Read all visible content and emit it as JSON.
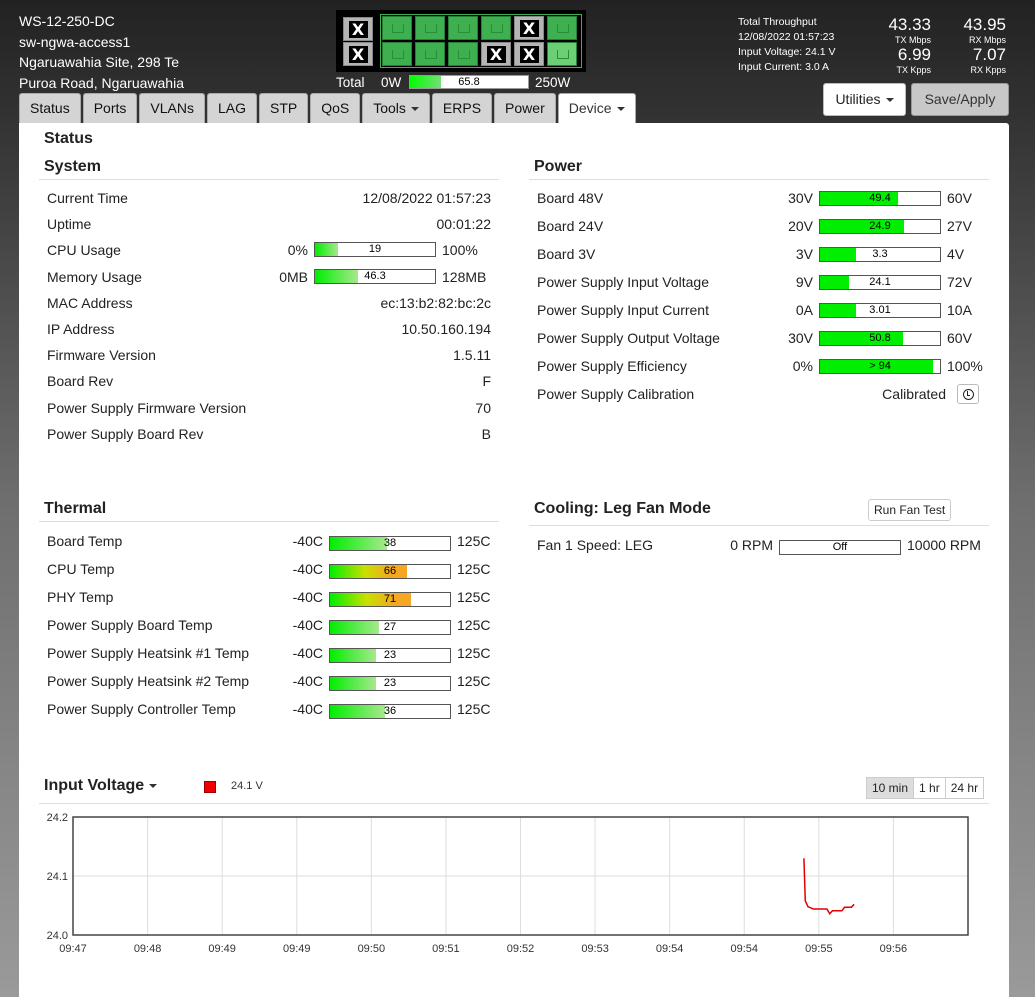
{
  "header": {
    "device_name": "WS-12-250-DC",
    "hostname": "sw-ngwa-access1",
    "location_line1": "Ngaruawahia Site, 298 Te",
    "location_line2": "Puroa Road, Ngaruawahia",
    "total_label": "Total",
    "total_min": "0W",
    "total_value": "65.8",
    "total_fraction": 0.263,
    "total_max": "250W",
    "throughput_title": "Total Throughput",
    "timestamp": "12/08/2022 01:57:23",
    "input_voltage": "Input Voltage: 24.1 V",
    "input_current": "Input Current: 3.0 A",
    "tx_mbps": "43.33",
    "tx_mbps_label": "TX Mbps",
    "rx_mbps": "43.95",
    "rx_mbps_label": "RX Mbps",
    "tx_kpps": "6.99",
    "tx_kpps_label": "TX Kpps",
    "rx_kpps": "7.07",
    "rx_kpps_label": "RX Kpps"
  },
  "ports": {
    "sfp": [
      "down",
      "down"
    ],
    "top": [
      "up",
      "up",
      "up",
      "up",
      "down",
      "up"
    ],
    "bottom": [
      "up",
      "up",
      "up",
      "down",
      "down",
      "up-light"
    ],
    "down_glyph": "X"
  },
  "tabs": [
    {
      "label": "Status"
    },
    {
      "label": "Ports"
    },
    {
      "label": "VLANs"
    },
    {
      "label": "LAG"
    },
    {
      "label": "STP"
    },
    {
      "label": "QoS"
    },
    {
      "label": "Tools",
      "dropdown": true
    },
    {
      "label": "ERPS"
    },
    {
      "label": "Power"
    },
    {
      "label": "Device",
      "dropdown": true,
      "active": true
    }
  ],
  "buttons": {
    "utilities": "Utilities",
    "save_apply": "Save/Apply"
  },
  "page_title": "Status",
  "system": {
    "title": "System",
    "rows": [
      {
        "label": "Current Time",
        "value": "12/08/2022 01:57:23"
      },
      {
        "label": "Uptime",
        "value": "00:01:22"
      },
      {
        "label": "CPU Usage",
        "bar": {
          "min": "0%",
          "max": "100%",
          "text": "19",
          "fraction": 0.19
        }
      },
      {
        "label": "Memory Usage",
        "bar": {
          "min": "0MB",
          "max": "128MB",
          "text": "46.3",
          "fraction": 0.36
        }
      },
      {
        "label": "MAC Address",
        "value": "ec:13:b2:82:bc:2c"
      },
      {
        "label": "IP Address",
        "value": "10.50.160.194"
      },
      {
        "label": "Firmware Version",
        "value": "1.5.11"
      },
      {
        "label": "Board Rev",
        "value": "F"
      },
      {
        "label": "Power Supply Firmware Version",
        "value": "70"
      },
      {
        "label": "Power Supply Board Rev",
        "value": "B"
      }
    ]
  },
  "power": {
    "title": "Power",
    "rows": [
      {
        "label": "Board 48V",
        "bar": {
          "min": "30V",
          "max": "60V",
          "text": "49.4",
          "fraction": 0.647
        }
      },
      {
        "label": "Board 24V",
        "bar": {
          "min": "20V",
          "max": "27V",
          "text": "24.9",
          "fraction": 0.7
        }
      },
      {
        "label": "Board 3V",
        "bar": {
          "min": "3V",
          "max": "4V",
          "text": "3.3",
          "fraction": 0.3
        }
      },
      {
        "label": "Power Supply Input Voltage",
        "bar": {
          "min": "9V",
          "max": "72V",
          "text": "24.1",
          "fraction": 0.24
        }
      },
      {
        "label": "Power Supply Input Current",
        "bar": {
          "min": "0A",
          "max": "10A",
          "text": "3.01",
          "fraction": 0.3
        }
      },
      {
        "label": "Power Supply Output Voltage",
        "bar": {
          "min": "30V",
          "max": "60V",
          "text": "50.8",
          "fraction": 0.693
        }
      },
      {
        "label": "Power Supply Efficiency",
        "bar": {
          "min": "0%",
          "max": "100%",
          "text": "> 94",
          "fraction": 0.94
        }
      },
      {
        "label": "Power Supply Calibration",
        "value": "Calibrated",
        "icon": "clock-icon"
      }
    ]
  },
  "thermal": {
    "title": "Thermal",
    "rows": [
      {
        "label": "Board Temp",
        "bar": {
          "min": "-40C",
          "max": "125C",
          "text": "38",
          "fraction": 0.473
        }
      },
      {
        "label": "CPU Temp",
        "bar": {
          "min": "-40C",
          "max": "125C",
          "text": "66",
          "fraction": 0.642
        }
      },
      {
        "label": "PHY Temp",
        "bar": {
          "min": "-40C",
          "max": "125C",
          "text": "71",
          "fraction": 0.673
        }
      },
      {
        "label": "Power Supply Board Temp",
        "bar": {
          "min": "-40C",
          "max": "125C",
          "text": "27",
          "fraction": 0.406
        }
      },
      {
        "label": "Power Supply Heatsink #1 Temp",
        "bar": {
          "min": "-40C",
          "max": "125C",
          "text": "23",
          "fraction": 0.382
        }
      },
      {
        "label": "Power Supply Heatsink #2 Temp",
        "bar": {
          "min": "-40C",
          "max": "125C",
          "text": "23",
          "fraction": 0.382
        }
      },
      {
        "label": "Power Supply Controller Temp",
        "bar": {
          "min": "-40C",
          "max": "125C",
          "text": "36",
          "fraction": 0.461
        }
      }
    ]
  },
  "cooling": {
    "title": "Cooling: Leg Fan Mode",
    "test_button": "Run Fan Test",
    "rows": [
      {
        "label": "Fan 1 Speed: LEG",
        "bar": {
          "min": "0 RPM",
          "max": "10000 RPM",
          "text": "Off",
          "fraction": 0
        }
      }
    ]
  },
  "graph": {
    "title": "Input Voltage",
    "legend": "24.1 V",
    "ranges": [
      "10 min",
      "1 hr",
      "24 hr"
    ],
    "active_range": "10 min"
  },
  "colors": {
    "bar_green": "#00ee00",
    "bar_orange": "#f5a623",
    "series": "#e00000",
    "port_up": "#3fb04f"
  },
  "chart_data": {
    "type": "line",
    "title": "Input Voltage",
    "series": [
      {
        "name": "24.1 V",
        "x": [
          "09:55:59",
          "09:56:00",
          "09:56:02",
          "09:56:06",
          "09:56:09",
          "09:56:16",
          "09:56:18",
          "09:56:20",
          "09:56:27",
          "09:56:29",
          "09:56:34",
          "09:56:36"
        ],
        "values": [
          24.13,
          24.058,
          24.048,
          24.044,
          24.044,
          24.044,
          24.036,
          24.041,
          24.041,
          24.047,
          24.047,
          24.052
        ]
      }
    ],
    "ylim": [
      24.0,
      24.2
    ],
    "yticks": [
      "24.2",
      "24.1",
      "24.0"
    ],
    "xticks": [
      "09:47",
      "09:48",
      "09:49",
      "09:49",
      "09:50",
      "09:51",
      "09:52",
      "09:53",
      "09:54",
      "09:54",
      "09:55",
      "09:56"
    ],
    "grid": true,
    "legend": "top-left"
  }
}
